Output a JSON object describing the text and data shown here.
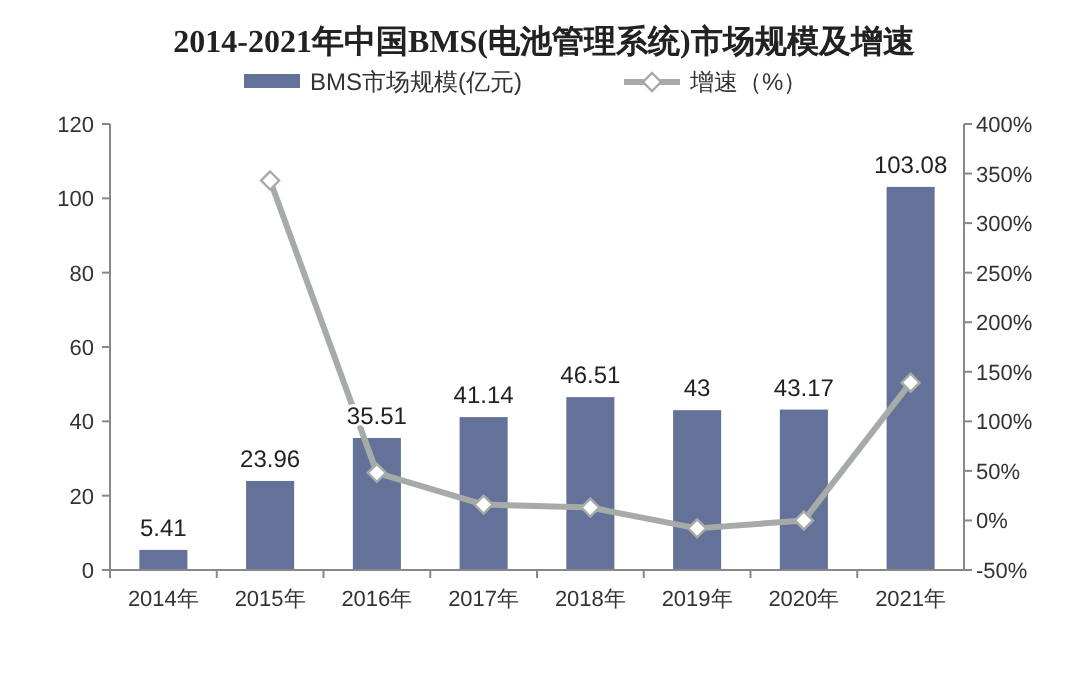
{
  "chart_data": {
    "type": "bar",
    "title": "2014-2021年中国BMS(电池管理系统)市场规模及增速",
    "categories": [
      "2014年",
      "2015年",
      "2016年",
      "2017年",
      "2018年",
      "2019年",
      "2020年",
      "2021年"
    ],
    "series": [
      {
        "name": "BMS市场规模(亿元)",
        "color": "#64729a",
        "values": [
          5.41,
          23.96,
          35.51,
          41.14,
          46.51,
          43,
          43.17,
          103.08
        ],
        "value_labels": [
          "5.41",
          "23.96",
          "35.51",
          "41.14",
          "46.51",
          "43",
          "43.17",
          "103.08"
        ]
      },
      {
        "name": "增速（%）",
        "type": "line",
        "axis": "y2",
        "color": "#a6aba8",
        "marker": "diamond",
        "values": [
          null,
          343,
          48,
          16,
          13,
          -8,
          0,
          139
        ]
      }
    ],
    "ylim": [
      0,
      120
    ],
    "yticks": [
      0,
      20,
      40,
      60,
      80,
      100,
      120
    ],
    "y2lim": [
      -50,
      400
    ],
    "y2ticks": [
      {
        "value": -50,
        "label": "-50%"
      },
      {
        "value": 0,
        "label": "0%"
      },
      {
        "value": 50,
        "label": "50%"
      },
      {
        "value": 100,
        "label": "100%"
      },
      {
        "value": 150,
        "label": "150%"
      },
      {
        "value": 200,
        "label": "200%"
      },
      {
        "value": 250,
        "label": "250%"
      },
      {
        "value": 300,
        "label": "300%"
      },
      {
        "value": 350,
        "label": "350%"
      },
      {
        "value": 400,
        "label": "400%"
      }
    ],
    "legend": "top",
    "grid": false
  }
}
